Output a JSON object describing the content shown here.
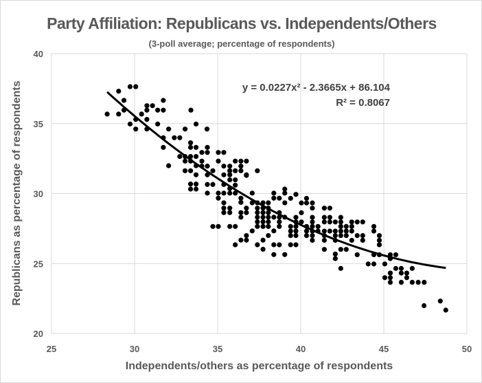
{
  "chart_data": {
    "type": "scatter",
    "title": "Party Affiliation: Republicans vs. Independents/Others",
    "subtitle": "(3-poll average; percentage of respondents)",
    "xlabel": "Independents/others as percentage of respondents",
    "ylabel": "Republicans as percentage of respondents",
    "xlim": [
      25,
      50
    ],
    "ylim": [
      20,
      40
    ],
    "xticks": [
      "25",
      "30",
      "35",
      "40",
      "45",
      "50"
    ],
    "yticks": [
      "20",
      "25",
      "30",
      "35",
      "40"
    ],
    "grid": true,
    "legend": "none",
    "marker_color": "#000000",
    "trendline": {
      "type": "polynomial-2",
      "coefficients": [
        0.0227,
        -2.3665,
        86.104
      ],
      "x_range": [
        28.35,
        48.73
      ],
      "equation_label": "y = 0.0227x² - 2.3665x + 86.104",
      "r2_label": "R² = 0.8067"
    },
    "points": [
      [
        28.35,
        35.68
      ],
      [
        29.04,
        37.32
      ],
      [
        29.04,
        35.68
      ],
      [
        29.36,
        36.66
      ],
      [
        29.36,
        35.96
      ],
      [
        29.73,
        37.64
      ],
      [
        30.07,
        37.64
      ],
      [
        29.73,
        34.97
      ],
      [
        30.07,
        35.3
      ],
      [
        30.07,
        34.61
      ],
      [
        30.42,
        35.68
      ],
      [
        30.74,
        36.28
      ],
      [
        31.08,
        36.28
      ],
      [
        30.74,
        35.96
      ],
      [
        30.74,
        35.3
      ],
      [
        30.74,
        34.61
      ],
      [
        31.39,
        35.96
      ],
      [
        31.73,
        35.96
      ],
      [
        31.73,
        36.66
      ],
      [
        31.39,
        34.97
      ],
      [
        31.73,
        33.99
      ],
      [
        32.05,
        34.61
      ],
      [
        31.73,
        33.3
      ],
      [
        32.39,
        33.99
      ],
      [
        32.72,
        33.99
      ],
      [
        32.05,
        31.99
      ],
      [
        33.04,
        34.61
      ],
      [
        33.39,
        35.96
      ],
      [
        33.7,
        34.97
      ],
      [
        34.36,
        34.61
      ],
      [
        33.37,
        33.63
      ],
      [
        33.37,
        33.3
      ],
      [
        33.7,
        33.3
      ],
      [
        32.72,
        32.65
      ],
      [
        33.04,
        32.65
      ],
      [
        33.37,
        32.65
      ],
      [
        33.7,
        32.65
      ],
      [
        33.04,
        32.32
      ],
      [
        33.37,
        32.32
      ],
      [
        33.7,
        31.99
      ],
      [
        33.04,
        31.63
      ],
      [
        33.37,
        31.63
      ],
      [
        33.7,
        31.34
      ],
      [
        33.37,
        30.68
      ],
      [
        33.7,
        30.68
      ],
      [
        33.37,
        30.32
      ],
      [
        33.7,
        30.32
      ],
      [
        34.05,
        32.94
      ],
      [
        34.38,
        33.3
      ],
      [
        34.38,
        32.94
      ],
      [
        35.04,
        32.94
      ],
      [
        35.37,
        32.94
      ],
      [
        34.05,
        32.32
      ],
      [
        35.04,
        32.32
      ],
      [
        34.05,
        31.96
      ],
      [
        34.38,
        31.96
      ],
      [
        34.71,
        31.63
      ],
      [
        35.37,
        31.96
      ],
      [
        35.73,
        31.96
      ],
      [
        35.73,
        31.63
      ],
      [
        36.06,
        32.32
      ],
      [
        36.4,
        32.32
      ],
      [
        36.73,
        32.32
      ],
      [
        36.4,
        31.96
      ],
      [
        36.06,
        31.63
      ],
      [
        36.4,
        31.63
      ],
      [
        36.73,
        31.3
      ],
      [
        37.39,
        31.63
      ],
      [
        34.38,
        31.34
      ],
      [
        35.37,
        31.34
      ],
      [
        35.73,
        31.34
      ],
      [
        35.73,
        30.98
      ],
      [
        36.06,
        30.98
      ],
      [
        36.73,
        31.34
      ],
      [
        34.38,
        30.65
      ],
      [
        34.71,
        30.65
      ],
      [
        35.37,
        30.65
      ],
      [
        35.73,
        30.36
      ],
      [
        36.06,
        30.6
      ],
      [
        35.73,
        30.03
      ],
      [
        36.06,
        30.03
      ],
      [
        34.38,
        30.03
      ],
      [
        35.04,
        30.03
      ],
      [
        35.37,
        30.03
      ],
      [
        35.04,
        29.67
      ],
      [
        36.4,
        29.67
      ],
      [
        36.4,
        29.37
      ],
      [
        37.08,
        30.03
      ],
      [
        37.08,
        29.34
      ],
      [
        37.39,
        29.34
      ],
      [
        35.37,
        29.34
      ],
      [
        35.37,
        28.96
      ],
      [
        35.73,
        28.96
      ],
      [
        35.37,
        28.64
      ],
      [
        35.73,
        28.64
      ],
      [
        36.4,
        28.64
      ],
      [
        36.4,
        28.31
      ],
      [
        36.73,
        28.96
      ],
      [
        36.73,
        28.64
      ],
      [
        37.39,
        28.96
      ],
      [
        37.39,
        28.64
      ],
      [
        37.39,
        28.31
      ],
      [
        37.39,
        27.98
      ],
      [
        37.39,
        27.65
      ],
      [
        37.73,
        28.96
      ],
      [
        37.73,
        28.64
      ],
      [
        37.73,
        28.31
      ],
      [
        37.73,
        27.98
      ],
      [
        37.73,
        27.65
      ],
      [
        38.05,
        28.96
      ],
      [
        38.05,
        28.64
      ],
      [
        38.05,
        28.31
      ],
      [
        38.05,
        27.98
      ],
      [
        38.05,
        27.65
      ],
      [
        37.73,
        29.34
      ],
      [
        38.05,
        29.34
      ],
      [
        38.38,
        30.03
      ],
      [
        38.38,
        29.67
      ],
      [
        38.71,
        29.67
      ],
      [
        39.04,
        30.32
      ],
      [
        39.04,
        30.03
      ],
      [
        39.04,
        29.34
      ],
      [
        38.38,
        28.31
      ],
      [
        38.71,
        28.64
      ],
      [
        38.71,
        28.31
      ],
      [
        38.71,
        27.98
      ],
      [
        38.71,
        27.65
      ],
      [
        39.04,
        28.31
      ],
      [
        34.71,
        27.65
      ],
      [
        35.04,
        27.65
      ],
      [
        35.73,
        27.65
      ],
      [
        36.06,
        27.65
      ],
      [
        36.06,
        26.34
      ],
      [
        36.4,
        26.67
      ],
      [
        36.73,
        26.67
      ],
      [
        36.73,
        27.0
      ],
      [
        37.08,
        27.33
      ],
      [
        37.39,
        26.34
      ],
      [
        37.73,
        26.67
      ],
      [
        37.73,
        26.02
      ],
      [
        38.05,
        27.0
      ],
      [
        38.38,
        27.33
      ],
      [
        38.38,
        26.34
      ],
      [
        38.71,
        26.34
      ],
      [
        38.38,
        25.64
      ],
      [
        39.04,
        25.64
      ],
      [
        39.39,
        29.66
      ],
      [
        39.71,
        29.94
      ],
      [
        40.35,
        29.66
      ],
      [
        40.35,
        29.33
      ],
      [
        40.7,
        29.33
      ],
      [
        40.04,
        29.33
      ],
      [
        40.7,
        28.96
      ],
      [
        40.04,
        28.63
      ],
      [
        39.71,
        28.3
      ],
      [
        39.71,
        27.97
      ],
      [
        40.04,
        27.97
      ],
      [
        39.39,
        27.65
      ],
      [
        39.39,
        27.32
      ],
      [
        39.39,
        27.0
      ],
      [
        39.71,
        27.65
      ],
      [
        39.71,
        27.32
      ],
      [
        39.71,
        27.0
      ],
      [
        40.35,
        27.65
      ],
      [
        40.35,
        27.32
      ],
      [
        40.35,
        27.0
      ],
      [
        40.7,
        28.3
      ],
      [
        40.7,
        27.97
      ],
      [
        40.7,
        27.65
      ],
      [
        40.7,
        27.32
      ],
      [
        40.7,
        27.0
      ],
      [
        40.7,
        26.66
      ],
      [
        41.04,
        27.65
      ],
      [
        41.04,
        27.32
      ],
      [
        41.42,
        28.96
      ],
      [
        41.75,
        28.96
      ],
      [
        41.42,
        28.3
      ],
      [
        41.75,
        28.3
      ],
      [
        41.42,
        27.97
      ],
      [
        41.75,
        27.97
      ],
      [
        41.42,
        27.32
      ],
      [
        41.75,
        27.32
      ],
      [
        41.42,
        27.0
      ],
      [
        41.42,
        26.66
      ],
      [
        41.42,
        26.01
      ],
      [
        42.08,
        27.97
      ],
      [
        42.08,
        27.32
      ],
      [
        42.08,
        27.0
      ],
      [
        42.08,
        26.66
      ],
      [
        42.41,
        28.3
      ],
      [
        42.41,
        27.97
      ],
      [
        42.41,
        27.65
      ],
      [
        42.41,
        27.32
      ],
      [
        42.41,
        27.0
      ],
      [
        42.74,
        27.65
      ],
      [
        42.74,
        27.32
      ],
      [
        42.74,
        27.0
      ],
      [
        43.07,
        27.97
      ],
      [
        43.07,
        27.65
      ],
      [
        43.07,
        27.32
      ],
      [
        43.07,
        26.66
      ],
      [
        43.4,
        27.97
      ],
      [
        43.73,
        27.97
      ],
      [
        43.4,
        27.0
      ],
      [
        43.73,
        27.0
      ],
      [
        43.73,
        26.66
      ],
      [
        42.08,
        25.68
      ],
      [
        42.08,
        25.35
      ],
      [
        42.41,
        26.01
      ],
      [
        42.74,
        26.01
      ],
      [
        42.41,
        24.65
      ],
      [
        43.4,
        25.63
      ],
      [
        44.4,
        27.65
      ],
      [
        44.4,
        27.32
      ],
      [
        44.73,
        27.0
      ],
      [
        44.73,
        26.66
      ],
      [
        44.73,
        26.34
      ],
      [
        44.4,
        25.63
      ],
      [
        44.06,
        24.97
      ],
      [
        44.4,
        24.97
      ],
      [
        44.73,
        25.63
      ],
      [
        45.06,
        24.97
      ],
      [
        45.06,
        23.99
      ],
      [
        45.39,
        25.63
      ],
      [
        45.72,
        25.63
      ],
      [
        45.39,
        25.35
      ],
      [
        45.39,
        24.32
      ],
      [
        45.39,
        23.99
      ],
      [
        45.39,
        23.66
      ],
      [
        45.72,
        24.65
      ],
      [
        46.05,
        24.65
      ],
      [
        46.05,
        24.32
      ],
      [
        46.05,
        23.66
      ],
      [
        46.38,
        24.32
      ],
      [
        46.38,
        23.99
      ],
      [
        46.71,
        24.65
      ],
      [
        46.71,
        23.66
      ],
      [
        47.07,
        23.66
      ],
      [
        47.43,
        23.66
      ],
      [
        39.39,
        26.34
      ],
      [
        39.71,
        26.34
      ],
      [
        47.42,
        21.99
      ],
      [
        48.4,
        22.32
      ],
      [
        48.73,
        21.67
      ]
    ]
  }
}
